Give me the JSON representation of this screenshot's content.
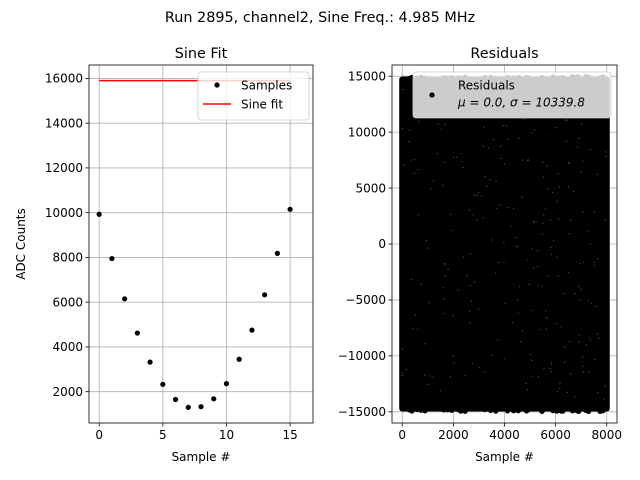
{
  "figure": {
    "suptitle": "Run 2895, channel2, Sine Freq.: 4.985 MHz"
  },
  "chart_data": [
    {
      "type": "scatter",
      "title": "Sine Fit",
      "xlabel": "Sample #",
      "ylabel": "ADC Counts",
      "xlim": [
        -0.8,
        16.8
      ],
      "ylim": [
        600,
        16600
      ],
      "xticks": [
        "0",
        "5",
        "10",
        "15"
      ],
      "xtick_values": [
        0,
        5,
        10,
        15
      ],
      "yticks": [
        "2000",
        "4000",
        "6000",
        "8000",
        "10000",
        "12000",
        "14000",
        "16000"
      ],
      "ytick_values": [
        2000,
        4000,
        6000,
        8000,
        10000,
        12000,
        14000,
        16000
      ],
      "grid": true,
      "legend_position": "top-right",
      "series": [
        {
          "name": "Samples",
          "kind": "scatter",
          "color": "#000000",
          "x": [
            0,
            1,
            2,
            3,
            4,
            5,
            6,
            7,
            8,
            9,
            10,
            11,
            12,
            13,
            14,
            15
          ],
          "y": [
            9930,
            7950,
            6150,
            4620,
            3320,
            2330,
            1650,
            1300,
            1330,
            1680,
            2360,
            3450,
            4750,
            6330,
            8180,
            10150
          ]
        },
        {
          "name": "Sine fit",
          "kind": "line",
          "color": "#ff0000",
          "x": [
            0,
            15
          ],
          "y": [
            15900,
            15900
          ]
        }
      ]
    },
    {
      "type": "scatter",
      "title": "Residuals",
      "xlabel": "Sample #",
      "ylabel": "",
      "xlim": [
        -400,
        8400
      ],
      "ylim": [
        -16000,
        16000
      ],
      "xticks": [
        "0",
        "2000",
        "4000",
        "6000",
        "8000"
      ],
      "xtick_values": [
        0,
        2000,
        4000,
        6000,
        8000
      ],
      "yticks": [
        "−15000",
        "−10000",
        "−5000",
        "0",
        "5000",
        "10000",
        "15000"
      ],
      "ytick_values": [
        -15000,
        -10000,
        -5000,
        0,
        5000,
        10000,
        15000
      ],
      "grid": true,
      "legend_position": "top-right",
      "series": [
        {
          "name": "Residuals",
          "kind": "scatter",
          "color": "#000000",
          "x_range": [
            0,
            8000
          ],
          "y_range": [
            -14700,
            14700
          ],
          "legend_stats": "μ = 0.0, σ = 10339.8"
        }
      ]
    }
  ]
}
